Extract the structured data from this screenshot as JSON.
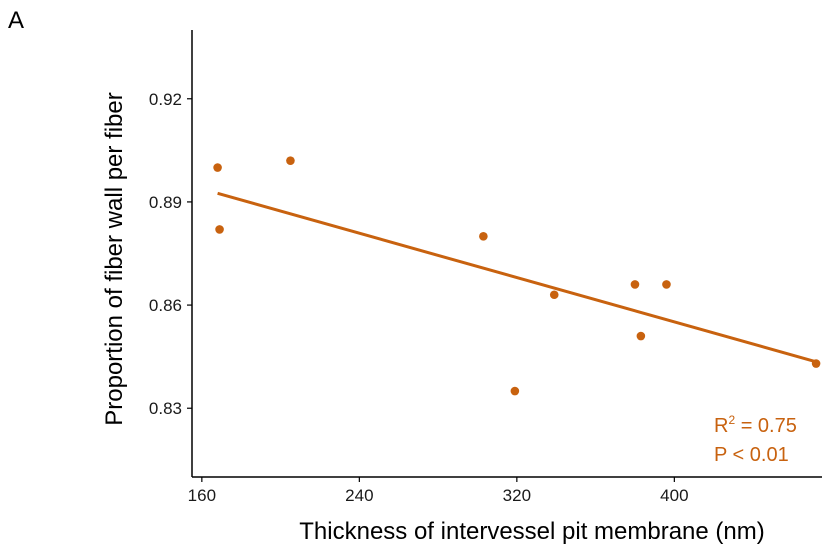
{
  "panel_label": "A",
  "colors": {
    "accent": "#C8620F",
    "axis": "#000000",
    "text": "#1a1a1a"
  },
  "annotations": {
    "r2_prefix": "R",
    "r2_sup": "2",
    "r2_value": " = 0.75",
    "p_value": "P < 0.01"
  },
  "chart_data": {
    "type": "scatter",
    "xlabel": "Thickness of intervessel pit membrane (nm)",
    "ylabel": "Proportion of fiber wall per fiber",
    "xlim": [
      155,
      475
    ],
    "ylim": [
      0.81,
      0.94
    ],
    "xticks": [
      160,
      240,
      320,
      400
    ],
    "yticks": [
      0.83,
      0.86,
      0.89,
      0.92
    ],
    "ytick_labels": [
      "0.83",
      "0.86",
      "0.89",
      "0.92"
    ],
    "grid": false,
    "points": [
      {
        "x": 168,
        "y": 0.9
      },
      {
        "x": 169,
        "y": 0.882
      },
      {
        "x": 205,
        "y": 0.902
      },
      {
        "x": 303,
        "y": 0.88
      },
      {
        "x": 319,
        "y": 0.835
      },
      {
        "x": 339,
        "y": 0.863
      },
      {
        "x": 380,
        "y": 0.866
      },
      {
        "x": 383,
        "y": 0.851
      },
      {
        "x": 396,
        "y": 0.866
      },
      {
        "x": 472,
        "y": 0.843
      }
    ],
    "fit_line": {
      "x": [
        168,
        472
      ],
      "y": [
        0.8925,
        0.8435
      ]
    }
  }
}
